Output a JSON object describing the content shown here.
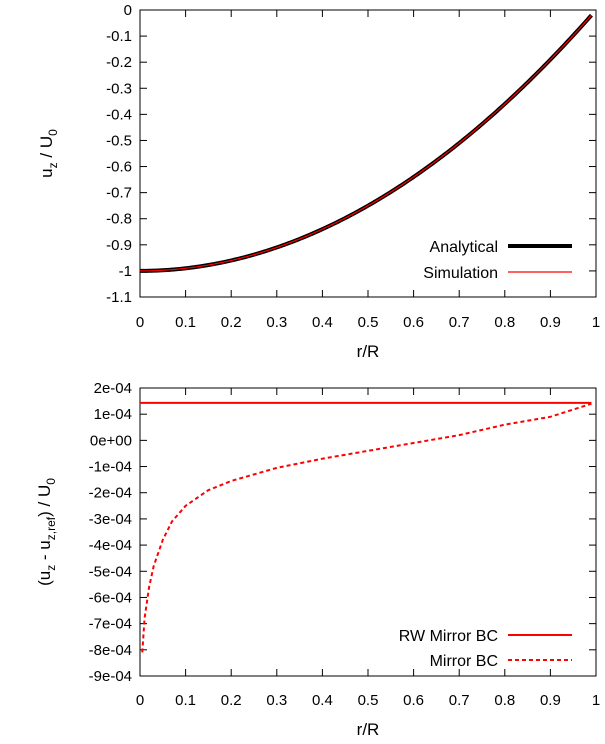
{
  "chart_data": [
    {
      "type": "line",
      "xlabel": "r/R",
      "ylabel_main": "u",
      "ylabel_sub": "z",
      "ylabel_tail": " / U",
      "ylabel_tail_sub": "0",
      "xlim": [
        0,
        1
      ],
      "ylim": [
        -1.1,
        0
      ],
      "xticks": [
        "0",
        "0.1",
        "0.2",
        "0.3",
        "0.4",
        "0.5",
        "0.6",
        "0.7",
        "0.8",
        "0.9",
        "1"
      ],
      "yticks": [
        "0",
        "-0.1",
        "-0.2",
        "-0.3",
        "-0.4",
        "-0.5",
        "-0.6",
        "-0.7",
        "-0.8",
        "-0.9",
        "-1",
        "-1.1"
      ],
      "legend_position": "bottom-right",
      "series": [
        {
          "name": "Analytical",
          "color": "#000000",
          "style": "solid-thick",
          "function": "r^2 - 1",
          "x": [
            0,
            0.1,
            0.2,
            0.3,
            0.4,
            0.5,
            0.6,
            0.7,
            0.8,
            0.9,
            0.99
          ],
          "y": [
            -1,
            -0.99,
            -0.96,
            -0.91,
            -0.84,
            -0.75,
            -0.64,
            -0.51,
            -0.36,
            -0.19,
            -0.02
          ]
        },
        {
          "name": "Simulation",
          "color": "#ff0000",
          "style": "solid-thin",
          "function": "r^2 - 1",
          "x": [
            0,
            0.1,
            0.2,
            0.3,
            0.4,
            0.5,
            0.6,
            0.7,
            0.8,
            0.9,
            0.99
          ],
          "y": [
            -1,
            -0.99,
            -0.96,
            -0.91,
            -0.84,
            -0.75,
            -0.64,
            -0.51,
            -0.36,
            -0.19,
            -0.02
          ]
        }
      ]
    },
    {
      "type": "line",
      "xlabel": "r/R",
      "ylabel_parts": [
        "(u",
        "z",
        " - u",
        "z,ref",
        ") / U",
        "0"
      ],
      "xlim": [
        0,
        1
      ],
      "ylim": [
        -0.0009,
        0.0002
      ],
      "xticks": [
        "0",
        "0.1",
        "0.2",
        "0.3",
        "0.4",
        "0.5",
        "0.6",
        "0.7",
        "0.8",
        "0.9",
        "1"
      ],
      "yticks": [
        "2e-04",
        "1e-04",
        "0e+00",
        "-1e-04",
        "-2e-04",
        "-3e-04",
        "-4e-04",
        "-5e-04",
        "-6e-04",
        "-7e-04",
        "-8e-04",
        "-9e-04"
      ],
      "legend_position": "bottom-right",
      "series": [
        {
          "name": "RW Mirror BC",
          "color": "#ff0000",
          "style": "solid",
          "x": [
            0,
            0.5,
            0.99
          ],
          "y": [
            0.000143,
            0.000143,
            0.000143
          ]
        },
        {
          "name": "Mirror BC",
          "color": "#ff0000",
          "style": "dashed",
          "x": [
            0.005,
            0.01,
            0.02,
            0.03,
            0.05,
            0.07,
            0.1,
            0.15,
            0.2,
            0.3,
            0.4,
            0.5,
            0.6,
            0.7,
            0.8,
            0.9,
            0.99
          ],
          "y": [
            -0.00081,
            -0.00068,
            -0.00056,
            -0.00048,
            -0.00038,
            -0.00031,
            -0.00025,
            -0.00019,
            -0.000155,
            -0.000105,
            -7e-05,
            -4e-05,
            -1e-05,
            2e-05,
            6e-05,
            9e-05,
            0.00014
          ]
        }
      ]
    }
  ]
}
